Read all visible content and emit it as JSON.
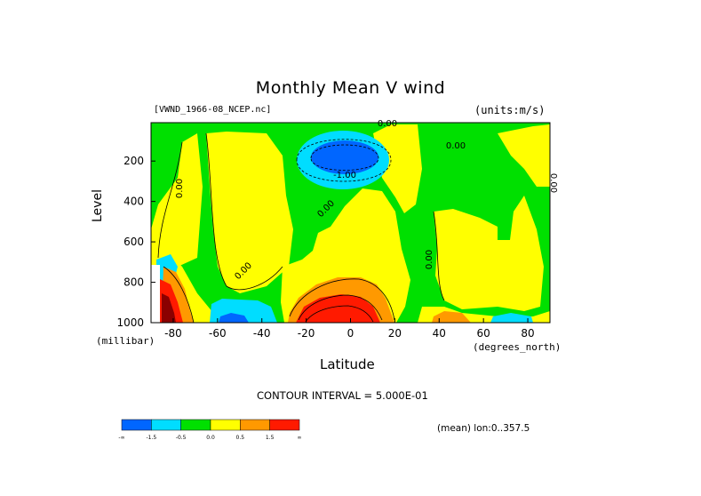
{
  "chart_data": {
    "type": "heatmap",
    "title": "Monthly Mean V wind",
    "dataset_label": "[VWND_1966-08_NCEP.nc]",
    "units_label": "(units:m/s)",
    "xlabel": "Latitude",
    "x_units": "(degrees_north)",
    "ylabel": "Level",
    "y_units": "(millibar)",
    "x_ticks": [
      "-80",
      "-60",
      "-40",
      "-20",
      "0",
      "20",
      "40",
      "60",
      "80"
    ],
    "x_tick_values": [
      -80,
      -60,
      -40,
      -20,
      0,
      20,
      40,
      60,
      80
    ],
    "y_ticks": [
      "200",
      "400",
      "600",
      "800",
      "1000"
    ],
    "y_tick_values": [
      200,
      400,
      600,
      800,
      1000
    ],
    "xlim": [
      -90,
      90
    ],
    "ylim": [
      1000,
      10
    ],
    "contour_interval_text": "CONTOUR INTERVAL = 5.000E-01",
    "mean_note": "(mean) lon:0..357.5",
    "contour_labels": [
      "0.00",
      "0.00",
      "0.00",
      "0.00",
      "-1.00",
      "0.00",
      "0.00",
      "0.00"
    ],
    "legend": {
      "colors": [
        "#0066ff",
        "#00ddff",
        "#00e000",
        "#ffff00",
        "#ff9900",
        "#ff1a00"
      ],
      "labels": [
        "-∞",
        "-1.5",
        "-0.5",
        "0.0",
        "0.5",
        "1.5",
        "∞"
      ]
    },
    "regions": [
      {
        "name": "negative-upper-tropics",
        "lat": [
          -22,
          12
        ],
        "level": [
          90,
          300
        ],
        "value": -1.5
      },
      {
        "name": "positive-low-level-tropics",
        "lat": [
          -25,
          12
        ],
        "level": [
          780,
          1000
        ],
        "value": 1.5
      },
      {
        "name": "positive-south-polar-surface",
        "lat": [
          -90,
          -77
        ],
        "level": [
          760,
          1000
        ],
        "value": 1.5
      },
      {
        "name": "negative-southern-surface",
        "lat": [
          -63,
          -33
        ],
        "level": [
          900,
          1000
        ],
        "value": -1.0
      }
    ],
    "colors": {
      "background": "#ffffff",
      "frame": "#000000"
    }
  }
}
